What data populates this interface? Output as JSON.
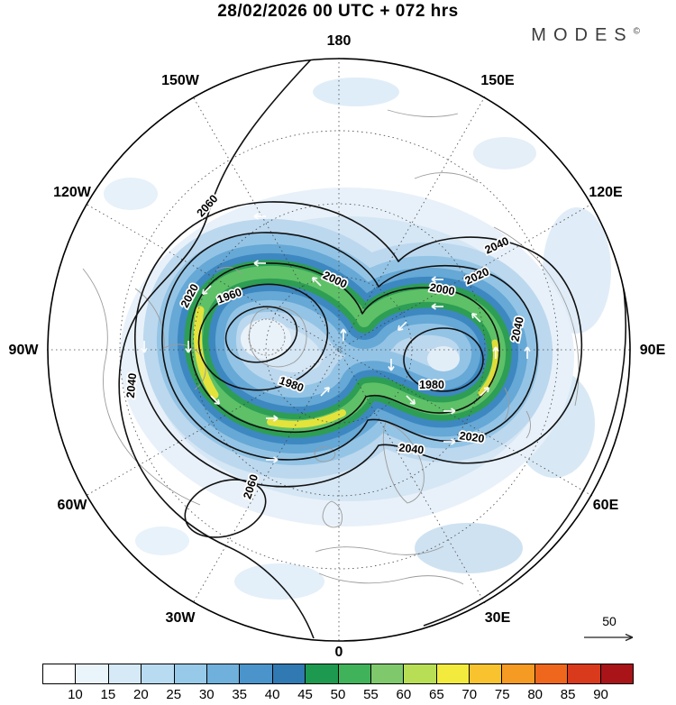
{
  "header": {
    "title": "28/02/2026  00 UTC  + 072 hrs",
    "brand": "MODES",
    "brand_mark": "©"
  },
  "map": {
    "projection": "north-polar-stereographic",
    "longitude_labels": [
      "180",
      "150W",
      "150E",
      "120W",
      "120E",
      "90W",
      "90E",
      "60W",
      "60E",
      "30W",
      "30E",
      "0"
    ],
    "contour_levels": [
      "1960",
      "1980",
      "2000",
      "2020",
      "2040",
      "2060"
    ],
    "wind_reference": {
      "value": "50"
    }
  },
  "colorbar": {
    "ticks": [
      "10",
      "15",
      "20",
      "25",
      "30",
      "35",
      "40",
      "45",
      "50",
      "55",
      "60",
      "65",
      "70",
      "75",
      "80",
      "85",
      "90"
    ],
    "colors": [
      "#ffffff",
      "#eaf4fb",
      "#d6e9f7",
      "#b9dbf1",
      "#97c9e8",
      "#6fb0dc",
      "#4a94cb",
      "#3079b3",
      "#1d9a50",
      "#3fb25a",
      "#7fc96c",
      "#b8de55",
      "#f2ea3c",
      "#f8c32e",
      "#f59a22",
      "#ee671c",
      "#d93a1c",
      "#a81418"
    ]
  }
}
